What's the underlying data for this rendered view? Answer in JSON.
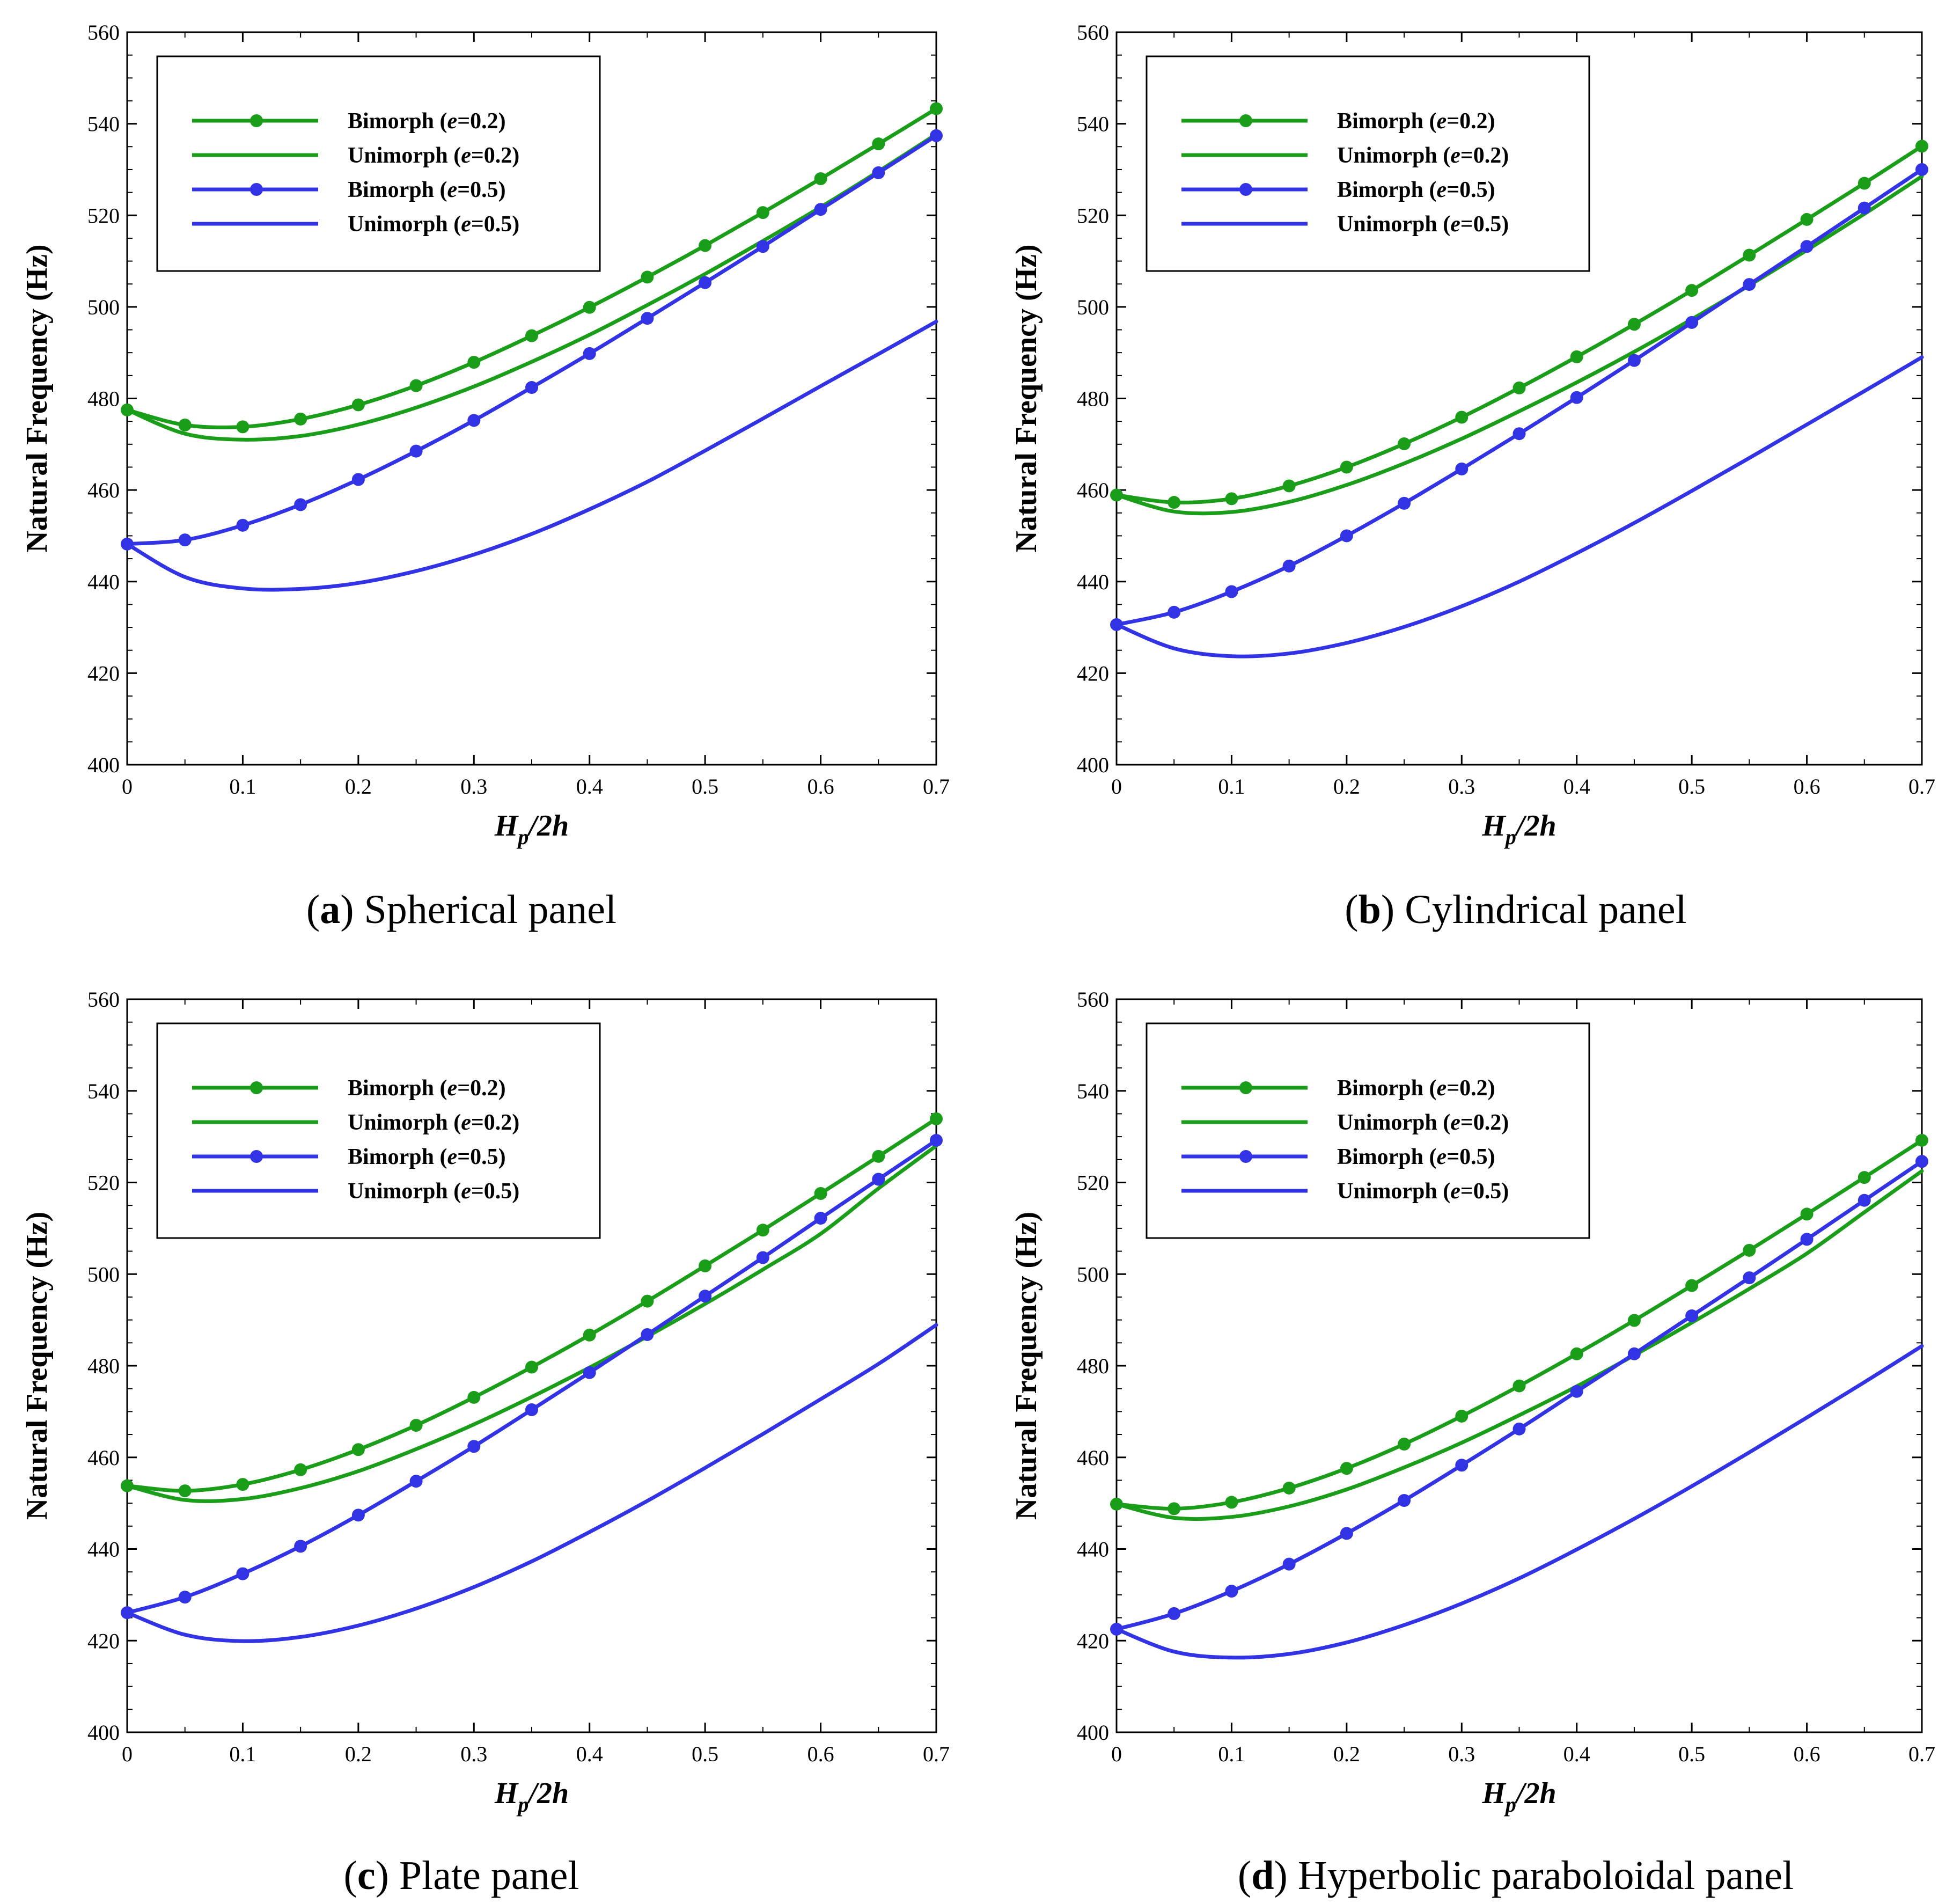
{
  "colors": {
    "green": "#1a9e1a",
    "blue": "#3333e6"
  },
  "chart_data": [
    {
      "type": "line",
      "panel_id": "a",
      "caption_title": "Spherical panel",
      "xlabel_main": "H",
      "xlabel_sub": "p",
      "xlabel_tail": "/2h",
      "ylabel": "Natural Frequency (Hz)",
      "xlim": [
        0,
        0.7
      ],
      "ylim": [
        400,
        560
      ],
      "xticks": [
        "0",
        "0.1",
        "0.2",
        "0.3",
        "0.4",
        "0.5",
        "0.6",
        "0.7"
      ],
      "yticks": [
        "400",
        "420",
        "440",
        "460",
        "480",
        "500",
        "520",
        "540",
        "560"
      ],
      "series": [
        {
          "name": "Bimorph",
          "e_value": "=0.2)",
          "color": "green",
          "markers": true,
          "x": [
            0,
            0.05,
            0.1,
            0.15,
            0.2,
            0.25,
            0.3,
            0.35,
            0.4,
            0.45,
            0.5,
            0.55,
            0.6,
            0.65,
            0.7
          ],
          "y": [
            477.5,
            474.2,
            473.8,
            475.5,
            478.6,
            482.8,
            487.9,
            493.7,
            499.9,
            506.5,
            513.4,
            520.6,
            528.0,
            535.6,
            543.3
          ]
        },
        {
          "name": "Unimorph",
          "e_value": "=0.2)",
          "color": "green",
          "markers": false,
          "x": [
            0,
            0.05,
            0.1,
            0.15,
            0.2,
            0.25,
            0.3,
            0.35,
            0.4,
            0.45,
            0.5,
            0.55,
            0.6,
            0.65,
            0.7
          ],
          "y": [
            477.5,
            472.3,
            471.0,
            471.8,
            474.3,
            478.0,
            482.6,
            488.0,
            493.9,
            500.4,
            507.2,
            514.4,
            521.8,
            529.6,
            537.7
          ]
        },
        {
          "name": "Bimorph",
          "e_value": "=0.5)",
          "color": "blue",
          "markers": true,
          "x": [
            0,
            0.05,
            0.1,
            0.15,
            0.2,
            0.25,
            0.3,
            0.35,
            0.4,
            0.45,
            0.5,
            0.55,
            0.6,
            0.65,
            0.7
          ],
          "y": [
            448.2,
            449.1,
            452.3,
            456.8,
            462.3,
            468.5,
            475.2,
            482.4,
            489.8,
            497.5,
            505.3,
            513.2,
            521.3,
            529.3,
            537.4
          ]
        },
        {
          "name": "Unimorph",
          "e_value": "=0.5)",
          "color": "blue",
          "markers": false,
          "x": [
            0,
            0.05,
            0.1,
            0.15,
            0.2,
            0.25,
            0.3,
            0.35,
            0.4,
            0.45,
            0.5,
            0.55,
            0.6,
            0.65,
            0.7
          ],
          "y": [
            448.2,
            441.0,
            438.5,
            438.4,
            439.7,
            442.3,
            445.9,
            450.4,
            455.8,
            461.8,
            468.6,
            475.6,
            482.7,
            489.7,
            496.8
          ]
        }
      ]
    },
    {
      "type": "line",
      "panel_id": "b",
      "caption_title": "Cylindrical panel",
      "xlabel_main": "H",
      "xlabel_sub": "p",
      "xlabel_tail": "/2h",
      "ylabel": "Natural Frequency (Hz)",
      "xlim": [
        0,
        0.7
      ],
      "ylim": [
        400,
        560
      ],
      "xticks": [
        "0",
        "0.1",
        "0.2",
        "0.3",
        "0.4",
        "0.5",
        "0.6",
        "0.7"
      ],
      "yticks": [
        "400",
        "420",
        "440",
        "460",
        "480",
        "500",
        "520",
        "540",
        "560"
      ],
      "series": [
        {
          "name": "Bimorph",
          "e_value": "=0.2)",
          "color": "green",
          "markers": true,
          "x": [
            0,
            0.05,
            0.1,
            0.15,
            0.2,
            0.25,
            0.3,
            0.35,
            0.4,
            0.45,
            0.5,
            0.55,
            0.6,
            0.65,
            0.7
          ],
          "y": [
            458.9,
            457.3,
            458.1,
            460.9,
            465.0,
            470.1,
            475.9,
            482.3,
            489.1,
            496.2,
            503.6,
            511.3,
            519.1,
            527.0,
            535.1
          ]
        },
        {
          "name": "Unimorph",
          "e_value": "=0.2)",
          "color": "green",
          "markers": false,
          "x": [
            0,
            0.05,
            0.1,
            0.15,
            0.2,
            0.25,
            0.3,
            0.35,
            0.4,
            0.45,
            0.5,
            0.55,
            0.6,
            0.65,
            0.7
          ],
          "y": [
            458.9,
            455.3,
            455.2,
            457.4,
            461.1,
            465.8,
            471.2,
            477.2,
            483.5,
            490.2,
            497.3,
            504.7,
            512.4,
            520.3,
            528.5
          ]
        },
        {
          "name": "Bimorph",
          "e_value": "=0.5)",
          "color": "blue",
          "markers": true,
          "x": [
            0,
            0.05,
            0.1,
            0.15,
            0.2,
            0.25,
            0.3,
            0.35,
            0.4,
            0.45,
            0.5,
            0.55,
            0.6,
            0.65,
            0.7
          ],
          "y": [
            430.6,
            433.3,
            437.8,
            443.4,
            450.0,
            457.1,
            464.6,
            472.3,
            480.2,
            488.3,
            496.6,
            504.9,
            513.2,
            521.6,
            530.0
          ]
        },
        {
          "name": "Unimorph",
          "e_value": "=0.5)",
          "color": "blue",
          "markers": false,
          "x": [
            0,
            0.05,
            0.1,
            0.15,
            0.2,
            0.25,
            0.3,
            0.35,
            0.4,
            0.45,
            0.5,
            0.55,
            0.6,
            0.65,
            0.7
          ],
          "y": [
            430.6,
            425.4,
            423.7,
            424.3,
            426.6,
            430.1,
            434.6,
            440.0,
            446.2,
            452.8,
            459.8,
            467.0,
            474.3,
            481.6,
            489.0
          ]
        }
      ]
    },
    {
      "type": "line",
      "panel_id": "c",
      "caption_title": "Plate panel",
      "xlabel_main": "H",
      "xlabel_sub": "p",
      "xlabel_tail": "/2h",
      "ylabel": "Natural Frequency (Hz)",
      "xlim": [
        0,
        0.7
      ],
      "ylim": [
        400,
        560
      ],
      "xticks": [
        "0",
        "0.1",
        "0.2",
        "0.3",
        "0.4",
        "0.5",
        "0.6",
        "0.7"
      ],
      "yticks": [
        "400",
        "420",
        "440",
        "460",
        "480",
        "500",
        "520",
        "540",
        "560"
      ],
      "series": [
        {
          "name": "Bimorph",
          "e_value": "=0.2)",
          "color": "green",
          "markers": true,
          "x": [
            0,
            0.05,
            0.1,
            0.15,
            0.2,
            0.25,
            0.3,
            0.35,
            0.4,
            0.45,
            0.5,
            0.55,
            0.6,
            0.65,
            0.7
          ],
          "y": [
            453.8,
            452.7,
            454.1,
            457.3,
            461.7,
            467.0,
            473.1,
            479.7,
            486.7,
            494.1,
            501.8,
            509.6,
            517.6,
            525.7,
            533.9
          ]
        },
        {
          "name": "Unimorph",
          "e_value": "=0.2)",
          "color": "green",
          "markers": false,
          "x": [
            0,
            0.05,
            0.1,
            0.15,
            0.2,
            0.25,
            0.3,
            0.35,
            0.4,
            0.45,
            0.5,
            0.55,
            0.6,
            0.65,
            0.7
          ],
          "y": [
            453.8,
            450.7,
            450.9,
            453.3,
            457.0,
            461.8,
            467.2,
            473.2,
            479.6,
            486.4,
            493.5,
            501.0,
            508.8,
            518.7,
            528.0
          ]
        },
        {
          "name": "Bimorph",
          "e_value": "=0.5)",
          "color": "blue",
          "markers": true,
          "x": [
            0,
            0.05,
            0.1,
            0.15,
            0.2,
            0.25,
            0.3,
            0.35,
            0.4,
            0.45,
            0.5,
            0.55,
            0.6,
            0.65,
            0.7
          ],
          "y": [
            426.1,
            429.5,
            434.6,
            440.6,
            447.4,
            454.8,
            462.4,
            470.4,
            478.5,
            486.8,
            495.2,
            503.6,
            512.2,
            520.7,
            529.2
          ]
        },
        {
          "name": "Unimorph",
          "e_value": "=0.5)",
          "color": "blue",
          "markers": false,
          "x": [
            0,
            0.05,
            0.1,
            0.15,
            0.2,
            0.25,
            0.3,
            0.35,
            0.4,
            0.45,
            0.5,
            0.55,
            0.6,
            0.65,
            0.7
          ],
          "y": [
            426.1,
            421.3,
            419.9,
            420.8,
            423.3,
            427.0,
            431.7,
            437.3,
            443.7,
            450.5,
            457.7,
            465.1,
            472.7,
            480.4,
            488.9
          ]
        }
      ]
    },
    {
      "type": "line",
      "panel_id": "d",
      "caption_title": "Hyperbolic paraboloidal panel",
      "xlabel_main": "H",
      "xlabel_sub": "p",
      "xlabel_tail": "/2h",
      "ylabel": "Natural Frequency (Hz)",
      "xlim": [
        0,
        0.7
      ],
      "ylim": [
        400,
        560
      ],
      "xticks": [
        "0",
        "0.1",
        "0.2",
        "0.3",
        "0.4",
        "0.5",
        "0.6",
        "0.7"
      ],
      "yticks": [
        "400",
        "420",
        "440",
        "460",
        "480",
        "500",
        "520",
        "540",
        "560"
      ],
      "series": [
        {
          "name": "Bimorph",
          "e_value": "=0.2)",
          "color": "green",
          "markers": true,
          "x": [
            0,
            0.05,
            0.1,
            0.15,
            0.2,
            0.25,
            0.3,
            0.35,
            0.4,
            0.45,
            0.5,
            0.55,
            0.6,
            0.65,
            0.7
          ],
          "y": [
            449.8,
            448.8,
            450.2,
            453.3,
            457.6,
            462.9,
            469.0,
            475.6,
            482.6,
            489.9,
            497.5,
            505.2,
            513.1,
            521.1,
            529.2
          ]
        },
        {
          "name": "Unimorph",
          "e_value": "=0.2)",
          "color": "green",
          "markers": false,
          "x": [
            0,
            0.05,
            0.1,
            0.15,
            0.2,
            0.25,
            0.3,
            0.35,
            0.4,
            0.45,
            0.5,
            0.55,
            0.6,
            0.65,
            0.7
          ],
          "y": [
            449.8,
            446.8,
            447.0,
            449.3,
            453.0,
            457.8,
            463.2,
            469.2,
            475.5,
            482.3,
            489.4,
            496.8,
            504.5,
            513.5,
            522.5
          ]
        },
        {
          "name": "Bimorph",
          "e_value": "=0.5)",
          "color": "blue",
          "markers": true,
          "x": [
            0,
            0.05,
            0.1,
            0.15,
            0.2,
            0.25,
            0.3,
            0.35,
            0.4,
            0.45,
            0.5,
            0.55,
            0.6,
            0.65,
            0.7
          ],
          "y": [
            422.5,
            425.9,
            430.8,
            436.7,
            443.4,
            450.6,
            458.3,
            466.2,
            474.4,
            482.6,
            490.9,
            499.2,
            507.6,
            516.1,
            524.6
          ]
        },
        {
          "name": "Unimorph",
          "e_value": "=0.5)",
          "color": "blue",
          "markers": false,
          "x": [
            0,
            0.05,
            0.1,
            0.15,
            0.2,
            0.25,
            0.3,
            0.35,
            0.4,
            0.45,
            0.5,
            0.55,
            0.6,
            0.65,
            0.7
          ],
          "y": [
            422.5,
            417.6,
            416.3,
            417.1,
            419.6,
            423.4,
            428.1,
            433.6,
            439.9,
            446.6,
            453.7,
            461.1,
            468.7,
            476.4,
            484.3
          ]
        }
      ]
    }
  ]
}
